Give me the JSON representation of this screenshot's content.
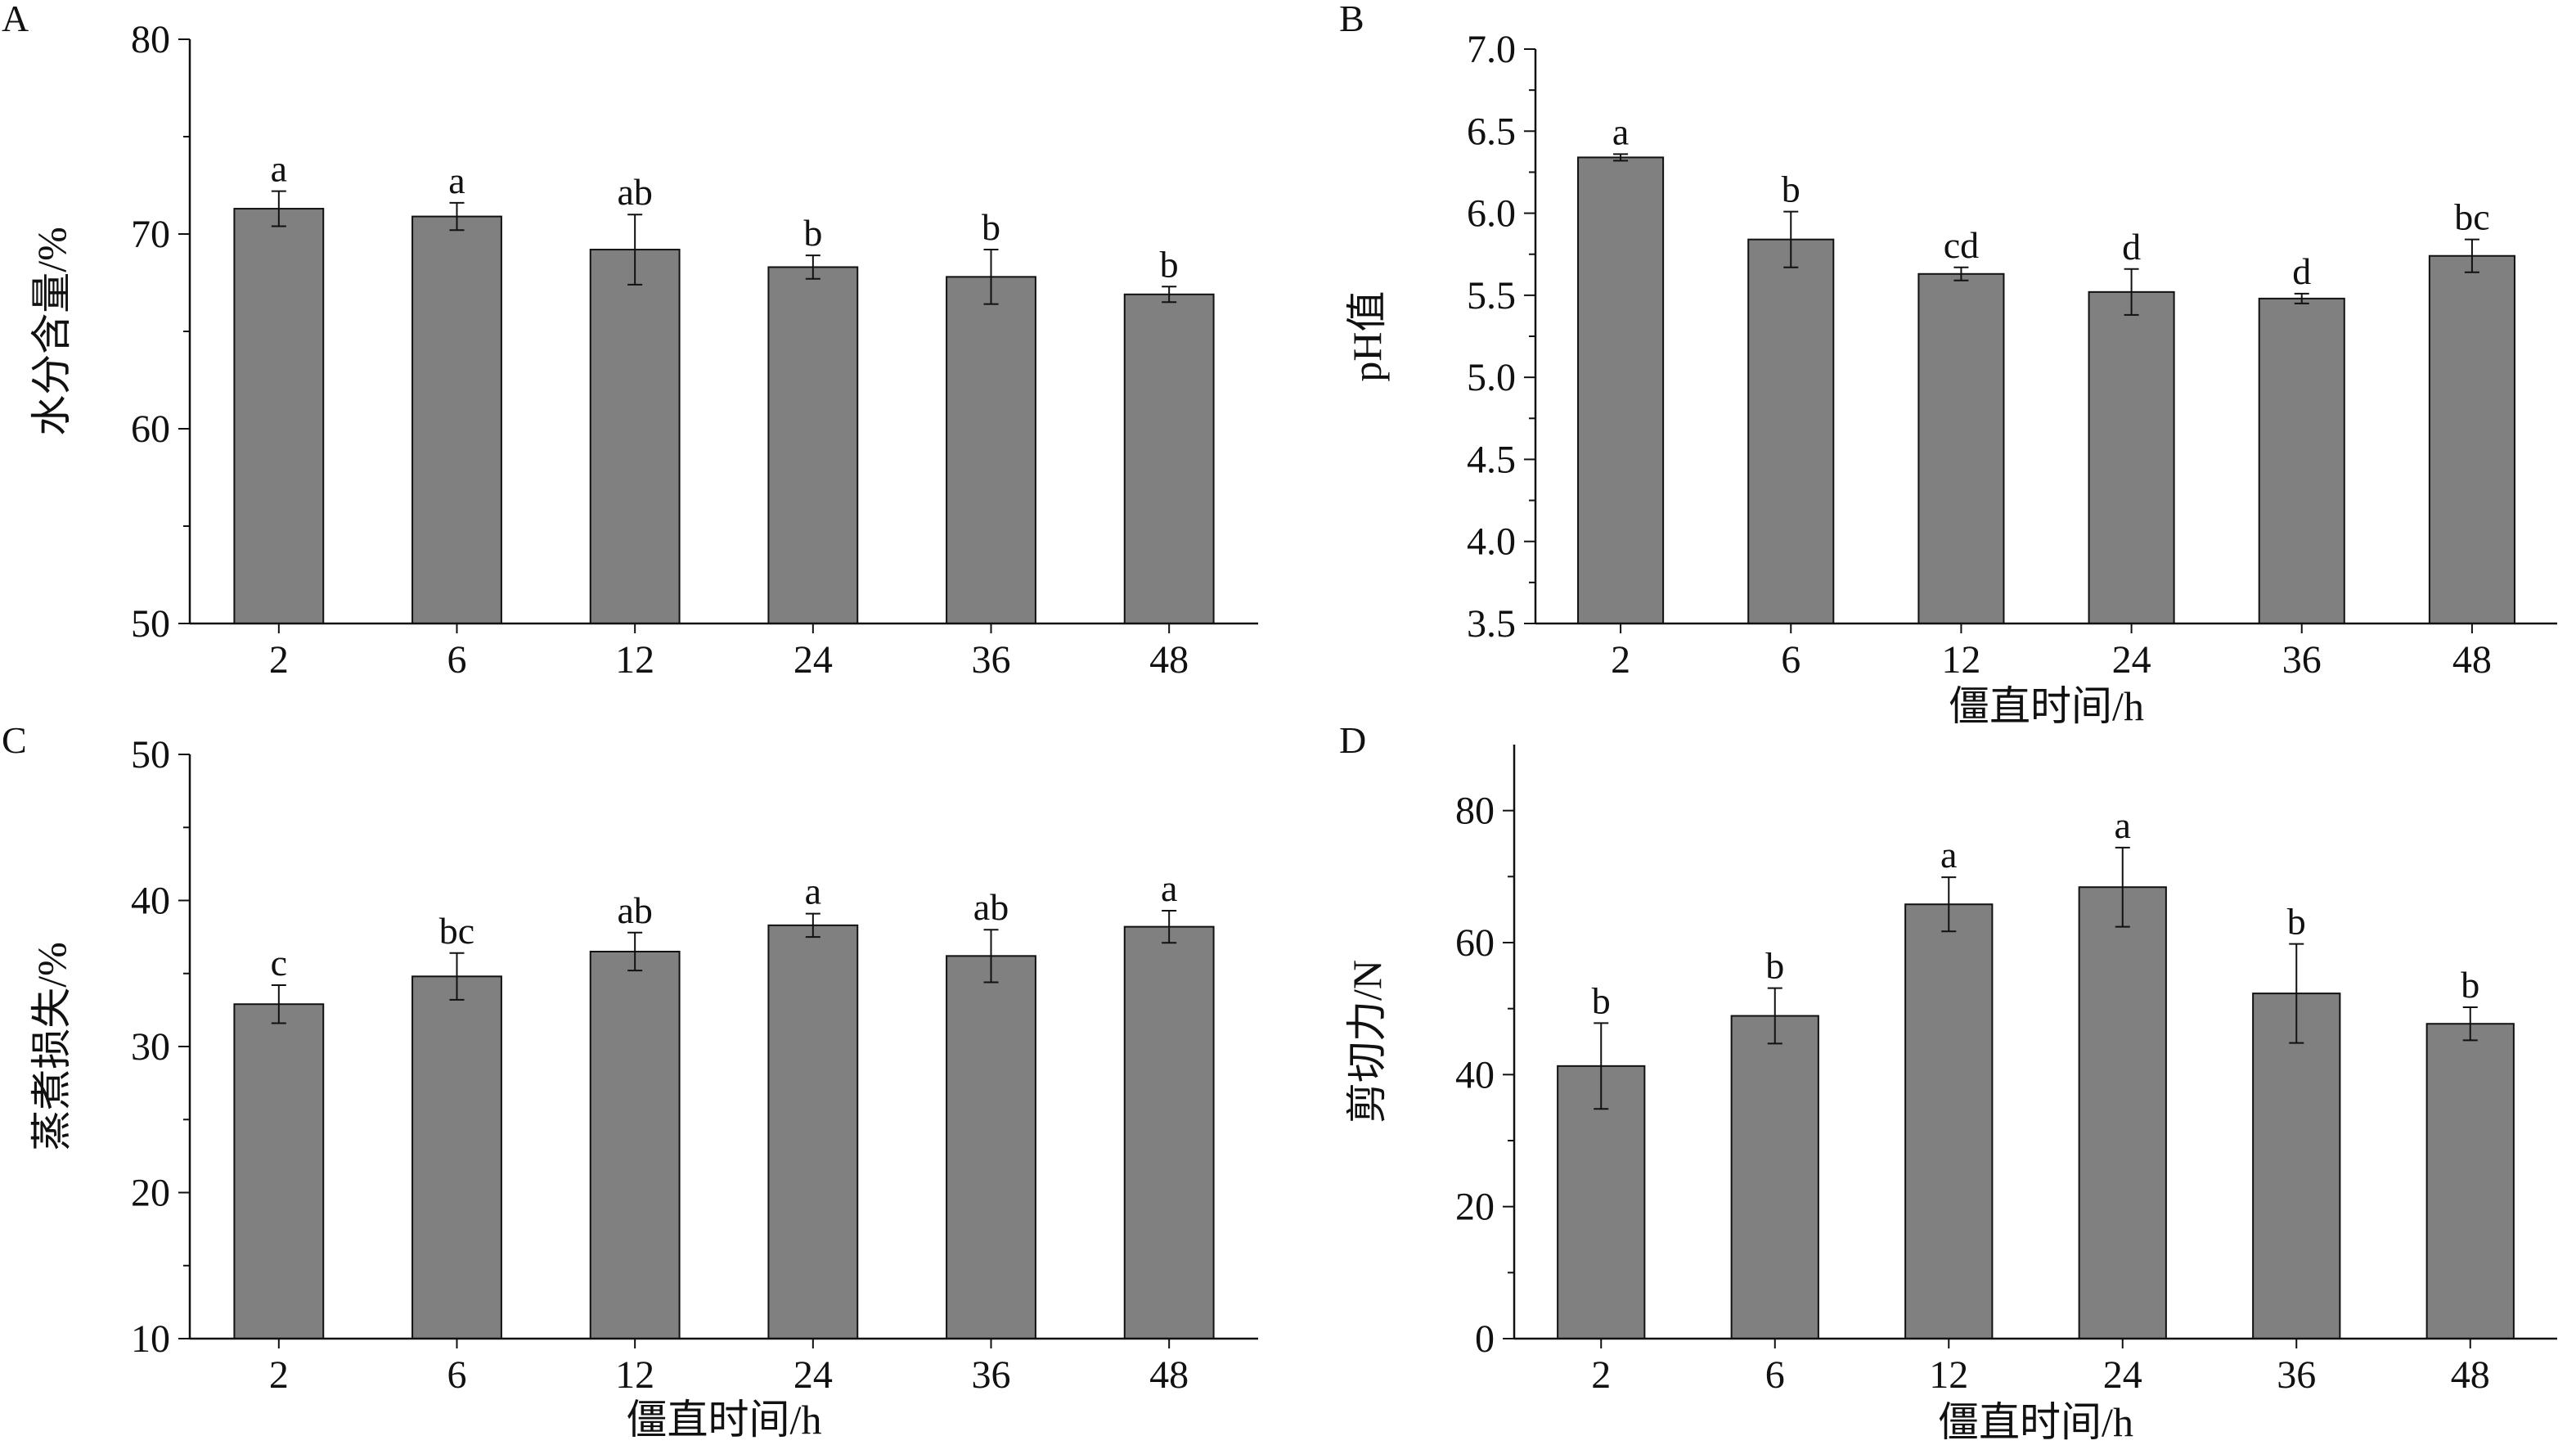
{
  "figure": {
    "chart_data": [
      {
        "panel": "A",
        "type": "bar",
        "categories": [
          "2",
          "6",
          "12",
          "24",
          "36",
          "48"
        ],
        "values": [
          71.3,
          70.9,
          69.2,
          68.3,
          67.8,
          66.9
        ],
        "errors": [
          0.9,
          0.7,
          1.8,
          0.6,
          1.4,
          0.4
        ],
        "sig_labels": [
          "a",
          "a",
          "ab",
          "b",
          "b",
          "b"
        ],
        "ylabel": "水分含量/%",
        "xlabel": "",
        "ylim": [
          50,
          80
        ],
        "yticks": [
          50,
          60,
          70,
          80
        ],
        "bar_color": "#808080"
      },
      {
        "panel": "B",
        "type": "bar",
        "categories": [
          "2",
          "6",
          "12",
          "24",
          "36",
          "48"
        ],
        "values": [
          6.34,
          5.84,
          5.63,
          5.52,
          5.48,
          5.74
        ],
        "errors": [
          0.02,
          0.17,
          0.04,
          0.14,
          0.03,
          0.1
        ],
        "sig_labels": [
          "a",
          "b",
          "cd",
          "d",
          "d",
          "bc"
        ],
        "ylabel": "pH值",
        "xlabel": "僵直时间/h",
        "ylim": [
          3.5,
          7.0
        ],
        "yticks": [
          3.5,
          4.0,
          4.5,
          5.0,
          5.5,
          6.0,
          6.5,
          7.0
        ],
        "bar_color": "#808080"
      },
      {
        "panel": "C",
        "type": "bar",
        "categories": [
          "2",
          "6",
          "12",
          "24",
          "36",
          "48"
        ],
        "values": [
          32.9,
          34.8,
          36.5,
          38.3,
          36.2,
          38.2
        ],
        "errors": [
          1.3,
          1.6,
          1.3,
          0.8,
          1.8,
          1.1
        ],
        "sig_labels": [
          "c",
          "bc",
          "ab",
          "a",
          "ab",
          "a"
        ],
        "ylabel": "蒸煮损失/%",
        "xlabel": "僵直时间/h",
        "ylim": [
          10,
          50
        ],
        "yticks": [
          10,
          20,
          30,
          40,
          50
        ],
        "bar_color": "#808080"
      },
      {
        "panel": "D",
        "type": "bar",
        "categories": [
          "2",
          "6",
          "12",
          "24",
          "36",
          "48"
        ],
        "values": [
          41.3,
          48.9,
          65.8,
          68.4,
          52.3,
          47.7
        ],
        "errors": [
          6.5,
          4.2,
          4.1,
          6.0,
          7.5,
          2.5
        ],
        "sig_labels": [
          "b",
          "b",
          "a",
          "a",
          "b",
          "b"
        ],
        "ylabel": "剪切力/N",
        "xlabel": "僵直时间/h",
        "ylim": [
          0,
          90
        ],
        "yticks": [
          0,
          20,
          40,
          60,
          80
        ],
        "bar_color": "#808080"
      }
    ]
  }
}
